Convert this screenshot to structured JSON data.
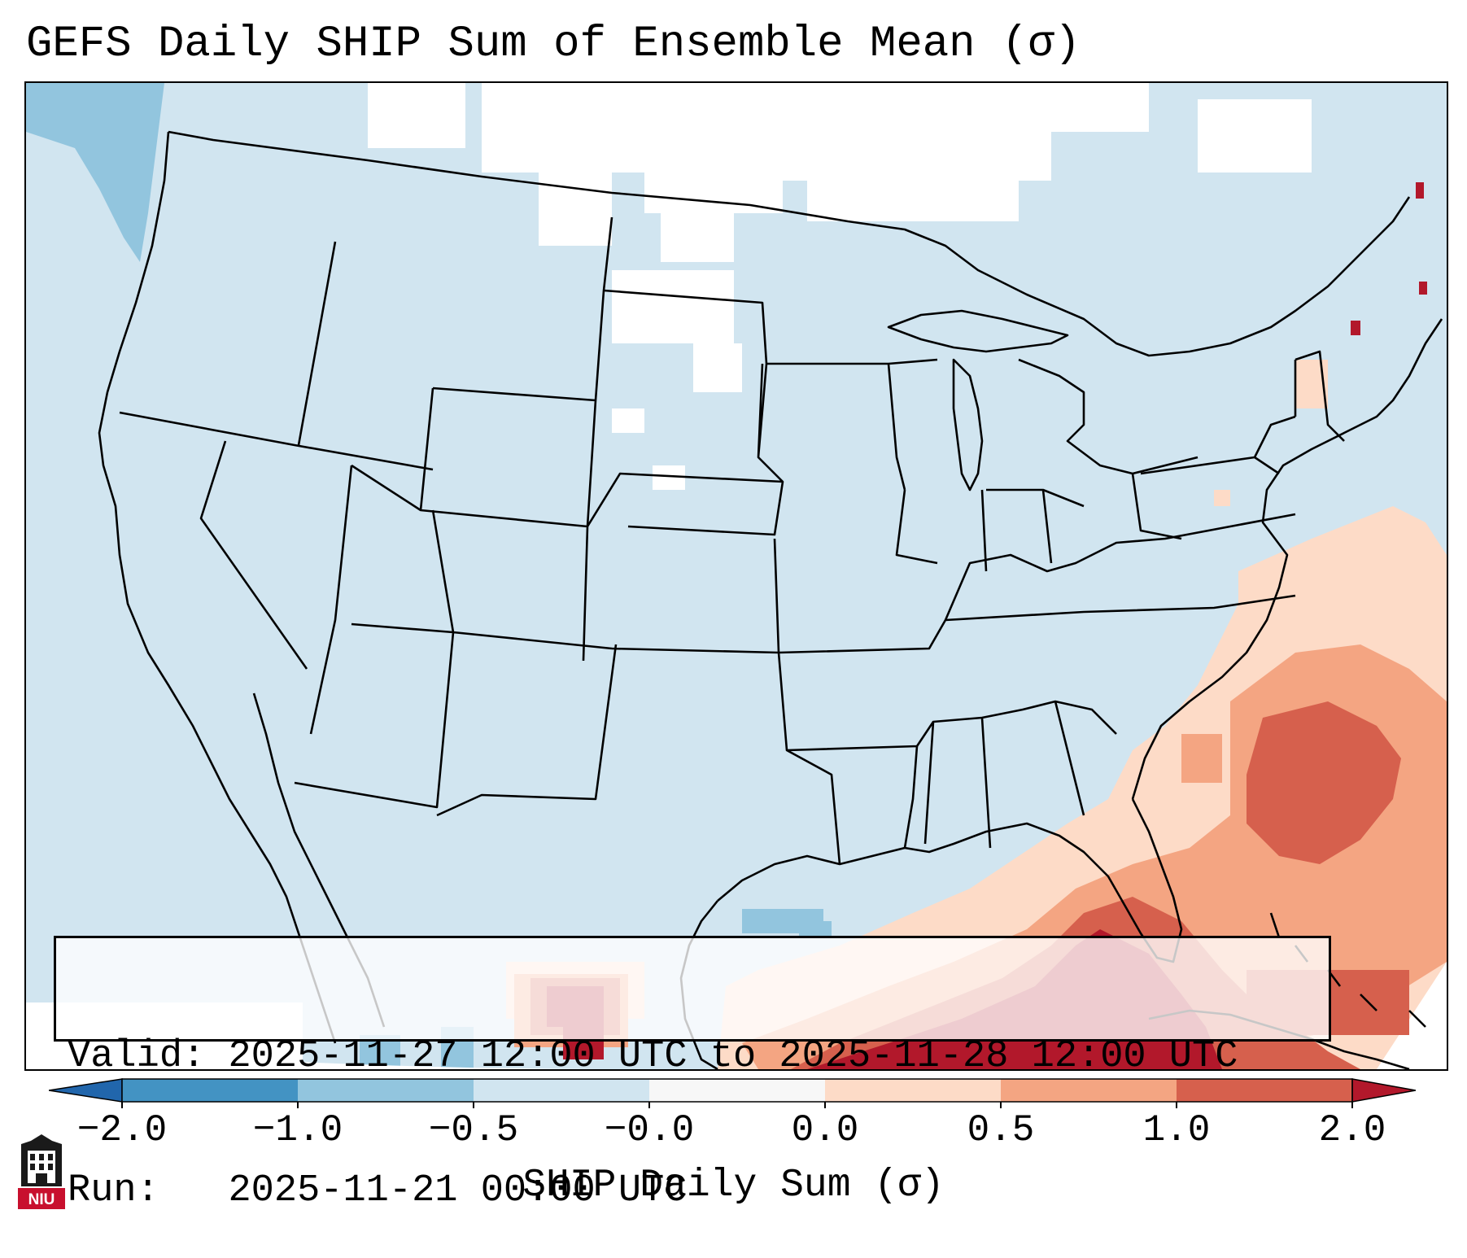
{
  "title": "GEFS Daily SHIP Sum of Ensemble Mean (σ)",
  "info": {
    "valid_label": "Valid:",
    "valid_value": "2025-11-27 12:00 UTC to 2025-11-28 12:00 UTC",
    "run_label": "Run:",
    "run_value": "2025-11-21 00:00 UTC"
  },
  "colorbar": {
    "label": "SHIP Daily Sum (σ)",
    "ticks": [
      "−2.0",
      "−1.0",
      "−0.5",
      "−0.0",
      "0.0",
      "0.5",
      "1.0",
      "2.0"
    ],
    "colors": [
      "#4393c3",
      "#92c5de",
      "#d1e5f0",
      "#f7f7f7",
      "#fddbc7",
      "#f4a582",
      "#d6604d"
    ],
    "extend_low_color": "#2166ac",
    "extend_high_color": "#b2182b"
  },
  "map": {
    "ocean_color": "#d1e5f0",
    "boundary_color": "#000000",
    "region": "Contiguous United States, northern Mexico, Gulf of Mexico, western Atlantic"
  },
  "logo": {
    "text": "NIU",
    "color": "#c8102e"
  }
}
